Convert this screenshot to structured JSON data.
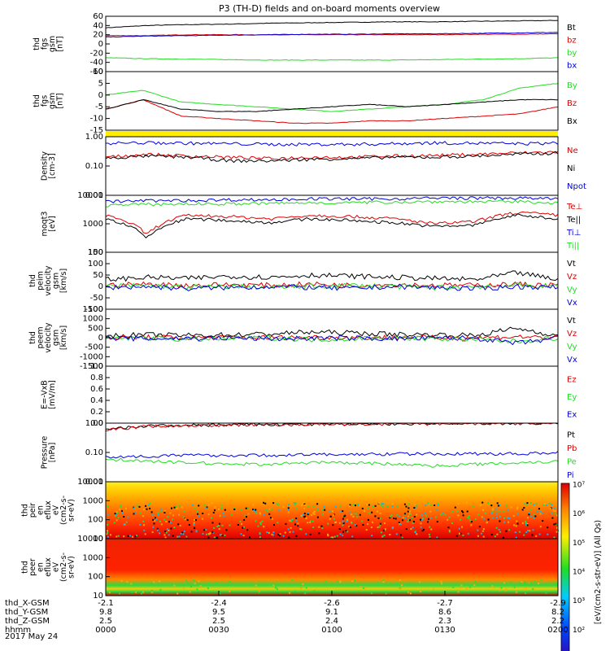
{
  "title": "P3 (TH-D) fields and on-board moments overview",
  "colors": {
    "black": "#000000",
    "red": "#dd0000",
    "green": "#22dd22",
    "blue": "#0000dd",
    "yellow": "#ffee00"
  },
  "time_axis": {
    "ticks": [
      "0000",
      "0030",
      "0100",
      "0130",
      "0200"
    ],
    "rows": [
      {
        "label": "thd_X-GSM",
        "values": [
          "-2.1",
          "-2.4",
          "-2.6",
          "-2.7",
          "-2.9"
        ]
      },
      {
        "label": "thd_Y-GSM",
        "values": [
          "9.8",
          "9.5",
          "9.1",
          "8.6",
          "8.2"
        ]
      },
      {
        "label": "thd_Z-GSM",
        "values": [
          "2.5",
          "2.5",
          "2.4",
          "2.3",
          "2.2"
        ]
      },
      {
        "label": "hhmm",
        "values": [
          "0000",
          "0030",
          "0100",
          "0130",
          "0200"
        ]
      }
    ],
    "date": "2017 May 24"
  },
  "colorbar": {
    "label": "[eV/(cm2-s-str-eV)] (All Qs)",
    "ticks": [
      "10¹",
      "10²",
      "10³",
      "10⁴",
      "10⁵",
      "10⁶",
      "10⁷"
    ]
  },
  "chart_data": [
    {
      "type": "line",
      "ylabel": "thd\nfgs\ngsm\n[nT]",
      "ylim": [
        -60,
        60
      ],
      "ticks": [
        "60",
        "40",
        "20",
        "0",
        "-20",
        "-40",
        "-60"
      ],
      "series": [
        {
          "name": "Bt",
          "color": "black",
          "values": [
            35,
            40,
            42,
            43,
            45,
            46,
            47,
            48,
            48,
            49,
            50,
            51
          ]
        },
        {
          "name": "bz",
          "color": "red",
          "values": [
            18,
            18,
            20,
            20,
            20,
            20,
            20,
            20,
            20,
            21,
            21,
            22
          ]
        },
        {
          "name": "by",
          "color": "green",
          "values": [
            -30,
            -32,
            -33,
            -34,
            -35,
            -35,
            -35,
            -35,
            -34,
            -33,
            -32,
            -30
          ]
        },
        {
          "name": "bx",
          "color": "blue",
          "values": [
            15,
            17,
            18,
            19,
            20,
            21,
            21,
            22,
            22,
            23,
            24,
            25
          ]
        }
      ]
    },
    {
      "type": "line",
      "ylabel": "thd\nfgs\ngsm\n[nT]",
      "ylim": [
        -15,
        10
      ],
      "ticks": [
        "10",
        "5",
        "0",
        "-5",
        "-10",
        "-15"
      ],
      "series": [
        {
          "name": "By",
          "color": "green",
          "values": [
            0,
            2,
            -3,
            -4,
            -5,
            -6,
            -7,
            -6,
            -5,
            -4,
            -2,
            3,
            5
          ]
        },
        {
          "name": "Bz",
          "color": "red",
          "values": [
            -6,
            -2,
            -9,
            -10,
            -11,
            -12,
            -12,
            -11,
            -11,
            -10,
            -9,
            -8,
            -5
          ]
        },
        {
          "name": "Bx",
          "color": "black",
          "values": [
            -6,
            -2,
            -6,
            -7,
            -7,
            -6,
            -5,
            -4,
            -5,
            -4,
            -3,
            -2,
            -2
          ]
        }
      ]
    },
    {
      "type": "line",
      "ylabel": "Density\n[cm-3]",
      "log": true,
      "ylim": [
        0.01,
        1
      ],
      "ticks": [
        "1.00",
        "0.10",
        "0.01"
      ],
      "series": [
        {
          "name": "Ne",
          "color": "red",
          "values": [
            0.2,
            0.25,
            0.22,
            0.2,
            0.18,
            0.2,
            0.2,
            0.22,
            0.23,
            0.25,
            0.28,
            0.3
          ]
        },
        {
          "name": "Ni",
          "color": "black",
          "values": [
            0.18,
            0.22,
            0.2,
            0.15,
            0.15,
            0.17,
            0.18,
            0.2,
            0.2,
            0.22,
            0.25,
            0.28
          ]
        },
        {
          "name": "Npot",
          "color": "blue",
          "values": [
            0.6,
            0.62,
            0.6,
            0.58,
            0.55,
            0.55,
            0.55,
            0.58,
            0.62,
            0.6,
            0.58,
            0.6
          ]
        }
      ]
    },
    {
      "type": "line",
      "ylabel": "moqt3\n[eV]",
      "log": true,
      "ylim": [
        100,
        10000
      ],
      "ticks": [
        "10000",
        "1000",
        "100"
      ],
      "series": [
        {
          "name": "Te⊥",
          "color": "red",
          "values": [
            2000,
            400,
            2000,
            1800,
            1500,
            2000,
            1800,
            1500,
            1000,
            1200,
            2500,
            2000
          ]
        },
        {
          "name": "Te||",
          "color": "black",
          "values": [
            1500,
            300,
            1500,
            1300,
            1100,
            1500,
            1300,
            1100,
            800,
            900,
            2000,
            1500
          ]
        },
        {
          "name": "Ti⊥",
          "color": "blue",
          "values": [
            6000,
            6500,
            6500,
            7000,
            7000,
            7500,
            7500,
            7500,
            8000,
            8000,
            8000,
            7500
          ]
        },
        {
          "name": "Ti||",
          "color": "green",
          "values": [
            4500,
            4800,
            5000,
            5000,
            5200,
            5500,
            5500,
            5800,
            6000,
            6000,
            6000,
            5500
          ]
        }
      ]
    },
    {
      "type": "line",
      "ylabel": "thd\npeim\nvelocity\ngsm\n[km/s]",
      "ylim": [
        -100,
        150
      ],
      "ticks": [
        "150",
        "100",
        "50",
        "0",
        "-50",
        "-100"
      ],
      "series": [
        {
          "name": "Vt",
          "color": "black",
          "values": [
            30,
            40,
            35,
            45,
            40,
            50,
            45,
            40,
            35,
            30,
            60,
            30
          ]
        },
        {
          "name": "Vz",
          "color": "red",
          "values": [
            5,
            10,
            5,
            8,
            5,
            10,
            5,
            8,
            5,
            5,
            10,
            5
          ]
        },
        {
          "name": "Vy",
          "color": "green",
          "values": [
            0,
            5,
            -5,
            0,
            -5,
            0,
            5,
            0,
            -5,
            0,
            5,
            0
          ]
        },
        {
          "name": "Vx",
          "color": "blue",
          "values": [
            -5,
            0,
            -10,
            -5,
            0,
            -5,
            -10,
            0,
            -5,
            -10,
            0,
            -5
          ]
        }
      ]
    },
    {
      "type": "line",
      "ylabel": "thd\npeem\nvelocity\ngsm\n[km/s]",
      "ylim": [
        -1500,
        1500
      ],
      "ticks": [
        "1500",
        "1000",
        "500",
        "0",
        "-500",
        "-1000",
        "-1500"
      ],
      "series": [
        {
          "name": "Vt",
          "color": "black",
          "values": [
            100,
            150,
            120,
            150,
            200,
            300,
            250,
            180,
            150,
            120,
            500,
            100
          ]
        },
        {
          "name": "Vz",
          "color": "red",
          "values": [
            0,
            20,
            0,
            10,
            0,
            20,
            0,
            10,
            0,
            0,
            50,
            0
          ]
        },
        {
          "name": "Vy",
          "color": "green",
          "values": [
            -50,
            0,
            -100,
            -50,
            0,
            -100,
            -50,
            0,
            -50,
            -100,
            -200,
            0
          ]
        },
        {
          "name": "Vx",
          "color": "blue",
          "values": [
            -20,
            -50,
            -30,
            -20,
            -50,
            -30,
            -20,
            -50,
            -30,
            -20,
            -300,
            -20
          ]
        }
      ]
    },
    {
      "type": "line",
      "ylabel": "E=-VxB\n[mV/m]",
      "ylim": [
        0,
        1
      ],
      "ticks": [
        "1.0",
        "0.8",
        "0.6",
        "0.4",
        "0.2",
        "0.0"
      ],
      "series": [
        {
          "name": "Ez",
          "color": "red",
          "values": []
        },
        {
          "name": "Ey",
          "color": "green",
          "values": []
        },
        {
          "name": "Ex",
          "color": "blue",
          "values": []
        }
      ]
    },
    {
      "type": "line",
      "ylabel": "Pressure\n[nPa]",
      "log": true,
      "ylim": [
        0.01,
        1
      ],
      "ticks": [
        "1.00",
        "0.10",
        "0.01"
      ],
      "series": [
        {
          "name": "Pt",
          "color": "black",
          "values": [
            0.6,
            0.8,
            0.85,
            0.88,
            0.9,
            0.92,
            0.95,
            0.95,
            0.98,
            1.0,
            1.0,
            1.05
          ]
        },
        {
          "name": "Pb",
          "color": "red",
          "values": [
            0.58,
            0.78,
            0.83,
            0.86,
            0.88,
            0.9,
            0.93,
            0.93,
            0.96,
            0.98,
            0.98,
            1.02
          ]
        },
        {
          "name": "Pe",
          "color": "green",
          "values": [
            0.06,
            0.05,
            0.045,
            0.04,
            0.04,
            0.045,
            0.045,
            0.04,
            0.035,
            0.04,
            0.045,
            0.05
          ]
        },
        {
          "name": "Pi",
          "color": "blue",
          "values": [
            0.07,
            0.075,
            0.08,
            0.08,
            0.08,
            0.085,
            0.085,
            0.09,
            0.09,
            0.09,
            0.09,
            0.1
          ]
        }
      ]
    },
    {
      "type": "heatmap",
      "ylabel": "thd\npeir\nen\neflux\neV\n(cm2-s-\nsr-eV)",
      "log": true,
      "ylim": [
        10,
        10000
      ],
      "ticks": [
        "10000",
        "1000",
        "100",
        "10"
      ]
    },
    {
      "type": "heatmap",
      "ylabel": "thd\npeer\nen\neflux\neV\n(cm2-s-\nsr-eV)",
      "log": true,
      "ylim": [
        10,
        10000
      ],
      "ticks": [
        "10000",
        "1000",
        "100",
        "10"
      ]
    }
  ]
}
